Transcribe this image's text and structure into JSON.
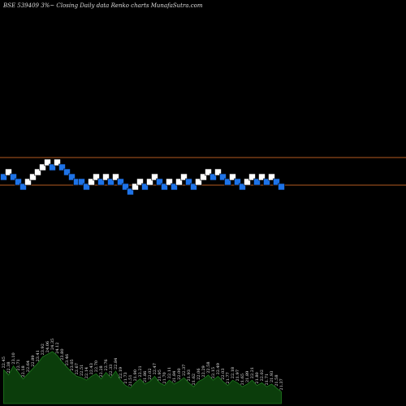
{
  "header": {
    "title": "BSE 539409 3%~  Closing Daily data  Renko  charts MunafaSutra.com"
  },
  "colors": {
    "background": "#000000",
    "up_brick": "#ffffff",
    "down_brick": "#1e73e8",
    "brick_border": "#000000",
    "reference_line": "#b35a1f",
    "volume_fill": "#0b3d0b",
    "volume_stroke": "#1f7a1f"
  },
  "chart_data": {
    "type": "renko",
    "reference_lines": [
      0.0,
      -2.0
    ],
    "bricks": [
      {
        "level": 0,
        "dir": "down"
      },
      {
        "level": 1,
        "dir": "up"
      },
      {
        "level": 0,
        "dir": "down"
      },
      {
        "level": -1,
        "dir": "down"
      },
      {
        "level": -2,
        "dir": "down"
      },
      {
        "level": -1,
        "dir": "up"
      },
      {
        "level": 0,
        "dir": "up"
      },
      {
        "level": 1,
        "dir": "up"
      },
      {
        "level": 2,
        "dir": "up"
      },
      {
        "level": 3,
        "dir": "up"
      },
      {
        "level": 2,
        "dir": "down"
      },
      {
        "level": 3,
        "dir": "up"
      },
      {
        "level": 2,
        "dir": "down"
      },
      {
        "level": 1,
        "dir": "down"
      },
      {
        "level": 0,
        "dir": "down"
      },
      {
        "level": -1,
        "dir": "down"
      },
      {
        "level": -1,
        "dir": "down"
      },
      {
        "level": -2,
        "dir": "down"
      },
      {
        "level": -1,
        "dir": "up"
      },
      {
        "level": 0,
        "dir": "up"
      },
      {
        "level": -1,
        "dir": "down"
      },
      {
        "level": 0,
        "dir": "up"
      },
      {
        "level": -1,
        "dir": "down"
      },
      {
        "level": 0,
        "dir": "up"
      },
      {
        "level": -1,
        "dir": "down"
      },
      {
        "level": -2,
        "dir": "down"
      },
      {
        "level": -3,
        "dir": "down"
      },
      {
        "level": -2,
        "dir": "up"
      },
      {
        "level": -1,
        "dir": "up"
      },
      {
        "level": -2,
        "dir": "down"
      },
      {
        "level": -1,
        "dir": "up"
      },
      {
        "level": 0,
        "dir": "up"
      },
      {
        "level": -1,
        "dir": "down"
      },
      {
        "level": -2,
        "dir": "down"
      },
      {
        "level": -1,
        "dir": "up"
      },
      {
        "level": -2,
        "dir": "down"
      },
      {
        "level": -1,
        "dir": "up"
      },
      {
        "level": 0,
        "dir": "up"
      },
      {
        "level": -1,
        "dir": "down"
      },
      {
        "level": -2,
        "dir": "down"
      },
      {
        "level": -1,
        "dir": "up"
      },
      {
        "level": 0,
        "dir": "up"
      },
      {
        "level": 1,
        "dir": "up"
      },
      {
        "level": 0,
        "dir": "down"
      },
      {
        "level": 1,
        "dir": "up"
      },
      {
        "level": 0,
        "dir": "down"
      },
      {
        "level": -1,
        "dir": "down"
      },
      {
        "level": 0,
        "dir": "up"
      },
      {
        "level": -1,
        "dir": "down"
      },
      {
        "level": -2,
        "dir": "down"
      },
      {
        "level": -1,
        "dir": "up"
      },
      {
        "level": 0,
        "dir": "up"
      },
      {
        "level": -1,
        "dir": "down"
      },
      {
        "level": 0,
        "dir": "up"
      },
      {
        "level": -1,
        "dir": "down"
      },
      {
        "level": 0,
        "dir": "up"
      },
      {
        "level": -1,
        "dir": "down"
      },
      {
        "level": -2,
        "dir": "down"
      }
    ],
    "volume": [
      26,
      22,
      29,
      24,
      19,
      23,
      27,
      31,
      36,
      38,
      40,
      37,
      32,
      28,
      24,
      21,
      20,
      18,
      21,
      23,
      19,
      24,
      20,
      25,
      18,
      14,
      12,
      16,
      19,
      15,
      17,
      21,
      16,
      14,
      18,
      15,
      17,
      20,
      16,
      13,
      17,
      19,
      22,
      18,
      21,
      17,
      14,
      18,
      16,
      13,
      15,
      18,
      14,
      16,
      13,
      15,
      12,
      9
    ],
    "volume_labels": [
      "22.45",
      "22.38",
      "23.10",
      "22.71",
      "22.18",
      "22.64",
      "22.89",
      "23.41",
      "23.92",
      "24.06",
      "24.35",
      "24.12",
      "23.80",
      "23.46",
      "23.05",
      "22.67",
      "22.51",
      "22.14",
      "22.43",
      "22.70",
      "22.28",
      "22.76",
      "22.33",
      "22.84",
      "22.19",
      "21.73",
      "21.51",
      "21.90",
      "22.21",
      "21.86",
      "22.02",
      "22.47",
      "21.95",
      "21.70",
      "22.11",
      "21.84",
      "22.00",
      "22.37",
      "21.93",
      "21.62",
      "22.06",
      "22.29",
      "22.58",
      "22.15",
      "22.49",
      "22.03",
      "21.77",
      "22.18",
      "21.97",
      "21.65",
      "21.89",
      "22.21",
      "21.80",
      "22.02",
      "21.71",
      "21.93",
      "21.58",
      "21.37"
    ]
  }
}
